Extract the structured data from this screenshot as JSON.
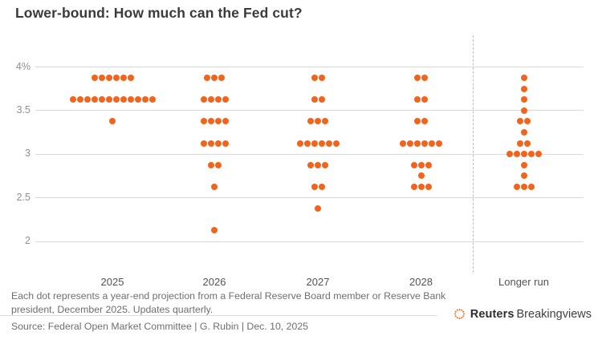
{
  "title": "Lower-bound: How much can the Fed cut?",
  "footnote": "Each dot represents a year-end projection from a Federal Reserve Board member or Reserve Bank president, December 2025. Updates quarterly.",
  "source": "Source: Federal Open Market Committee | G. Rubin | Dec. 10, 2025",
  "branding": {
    "brand_bold": "Reuters",
    "brand_regular": "Breakingviews",
    "logo_icon": "reuters-dotted-circle-icon"
  },
  "colors": {
    "dot": "#f2641c",
    "gridline": "#d9d9d9",
    "dashed_separator": "#bdbdbd",
    "axis_text": "#8f8f8f",
    "title_text": "#3a3a3a",
    "body_text": "#6e6e6e"
  },
  "chart_data": {
    "type": "scatter",
    "subtype": "fomc-dot-plot",
    "title": "Lower-bound: How much can the Fed cut?",
    "xlabel": "",
    "ylabel": "",
    "ylim": [
      2,
      4
    ],
    "grid": "horizontal",
    "legend": "none",
    "yticks": [
      {
        "value": 4,
        "label": "4%"
      },
      {
        "value": 3.5,
        "label": "3.5"
      },
      {
        "value": 3,
        "label": "3"
      },
      {
        "value": 2.5,
        "label": "2.5"
      },
      {
        "value": 2,
        "label": "2"
      }
    ],
    "categories": [
      "2025",
      "2026",
      "2027",
      "2028",
      "Longer run"
    ],
    "separator": {
      "style": "dashed",
      "before_category": "Longer run"
    },
    "series": [
      {
        "category": "2025",
        "dots": [
          {
            "rate": 3.875,
            "count": 6
          },
          {
            "rate": 3.625,
            "count": 12
          },
          {
            "rate": 3.375,
            "count": 1
          }
        ]
      },
      {
        "category": "2026",
        "dots": [
          {
            "rate": 3.875,
            "count": 3
          },
          {
            "rate": 3.625,
            "count": 4
          },
          {
            "rate": 3.375,
            "count": 4
          },
          {
            "rate": 3.125,
            "count": 4
          },
          {
            "rate": 2.875,
            "count": 2
          },
          {
            "rate": 2.625,
            "count": 1
          },
          {
            "rate": 2.125,
            "count": 1
          }
        ]
      },
      {
        "category": "2027",
        "dots": [
          {
            "rate": 3.875,
            "count": 2
          },
          {
            "rate": 3.625,
            "count": 2
          },
          {
            "rate": 3.375,
            "count": 3
          },
          {
            "rate": 3.125,
            "count": 6
          },
          {
            "rate": 2.875,
            "count": 3
          },
          {
            "rate": 2.625,
            "count": 2
          },
          {
            "rate": 2.375,
            "count": 1
          }
        ]
      },
      {
        "category": "2028",
        "dots": [
          {
            "rate": 3.875,
            "count": 2
          },
          {
            "rate": 3.625,
            "count": 2
          },
          {
            "rate": 3.375,
            "count": 2
          },
          {
            "rate": 3.125,
            "count": 6
          },
          {
            "rate": 2.875,
            "count": 3
          },
          {
            "rate": 2.75,
            "count": 1
          },
          {
            "rate": 2.625,
            "count": 3
          }
        ]
      },
      {
        "category": "Longer run",
        "dots": [
          {
            "rate": 3.875,
            "count": 1
          },
          {
            "rate": 3.75,
            "count": 1
          },
          {
            "rate": 3.625,
            "count": 1
          },
          {
            "rate": 3.5,
            "count": 1
          },
          {
            "rate": 3.375,
            "count": 2
          },
          {
            "rate": 3.25,
            "count": 1
          },
          {
            "rate": 3.125,
            "count": 2
          },
          {
            "rate": 3.0,
            "count": 5
          },
          {
            "rate": 2.875,
            "count": 1
          },
          {
            "rate": 2.75,
            "count": 1
          },
          {
            "rate": 2.625,
            "count": 3
          }
        ]
      }
    ]
  }
}
